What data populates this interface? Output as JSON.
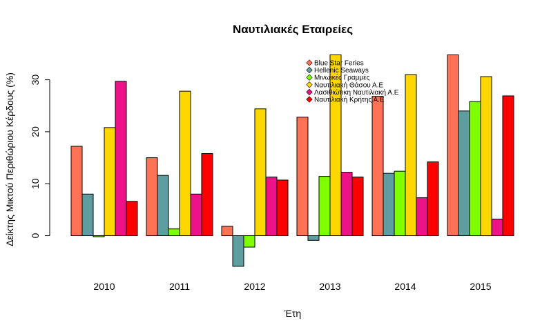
{
  "chart_data": {
    "type": "bar",
    "title": "Ναυτιλιακές Εταιρείες",
    "xlabel": "Έτη",
    "ylabel": "Δείκτης Μικτού Περιθώριου Κέρδους (%)",
    "categories": [
      "2010",
      "2011",
      "2012",
      "2013",
      "2014",
      "2015"
    ],
    "ylim": [
      -6,
      35
    ],
    "yticks": [
      0,
      10,
      20,
      30
    ],
    "grid": false,
    "legend_position": "top-center",
    "series": [
      {
        "name": "Blue Star Feries",
        "color": "#FF7256",
        "values": [
          17.2,
          15.0,
          1.8,
          22.8,
          26.8,
          34.8
        ]
      },
      {
        "name": "Hellenic Seaways",
        "color": "#5F9EA0",
        "values": [
          8.0,
          11.6,
          -5.9,
          -0.9,
          12.0,
          24.0
        ]
      },
      {
        "name": "Μινωικές Γραμμές",
        "color": "#7FFF00",
        "values": [
          -0.2,
          1.3,
          -2.2,
          11.4,
          12.4,
          25.8
        ]
      },
      {
        "name": "Ναυτιλιακή Θάσου Α.Ε",
        "color": "#FFD700",
        "values": [
          20.8,
          27.8,
          24.4,
          34.8,
          31.0,
          30.6
        ]
      },
      {
        "name": "Λασιθιώτικη Ναυτιλιακή Α.Ε",
        "color": "#EE1289",
        "values": [
          29.7,
          8.0,
          11.3,
          12.2,
          7.3,
          3.2
        ]
      },
      {
        "name": "Ναυτιλιακή Κρήτης Α.Ε",
        "color": "#FF0000",
        "values": [
          6.6,
          15.8,
          10.7,
          11.3,
          14.2,
          26.9
        ]
      }
    ]
  }
}
